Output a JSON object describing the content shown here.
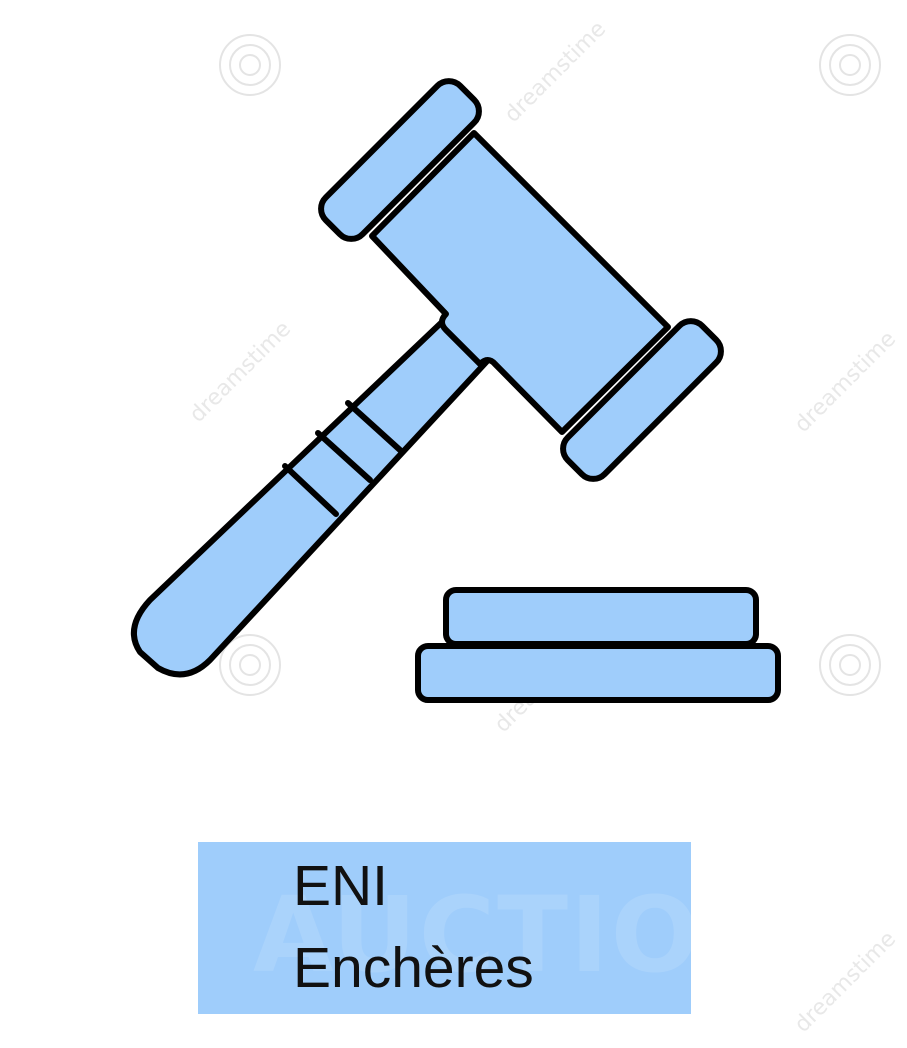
{
  "logo": {
    "line1": "ENI",
    "line2": "Enchères",
    "background_color": "#9fcdfb",
    "text_color": "#111111"
  },
  "illustration": {
    "icon": "gavel-icon",
    "sound_block_icon": "sound-block-icon",
    "fill_color": "#9fcdfb",
    "stroke_color": "#000000"
  },
  "watermark": {
    "text": "dreamstime",
    "background_text": "AUCTION"
  }
}
